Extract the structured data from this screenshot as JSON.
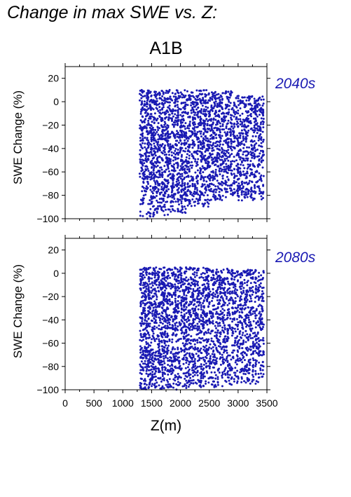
{
  "page_title": "Change in max SWE vs. Z:",
  "chart_title": "A1B",
  "colors": {
    "points": "#1a1ab3",
    "axes": "#000000"
  },
  "chart_data": [
    {
      "type": "scatter",
      "period_label": "2040s",
      "ylabel": "SWE Change (%)",
      "xlabel": "",
      "xlim": [
        0,
        3500
      ],
      "ylim": [
        -100,
        30
      ],
      "xticks": [
        "0",
        "500",
        "1000",
        "1500",
        "2000",
        "2500",
        "3000",
        "3500"
      ],
      "yticks": [
        "20",
        "0",
        "-20",
        "-40",
        "-60",
        "-80",
        "-100"
      ],
      "point_distribution": [
        {
          "x_range": [
            1300,
            1500
          ],
          "y_range": [
            -100,
            10
          ]
        },
        {
          "x_range": [
            1500,
            1800
          ],
          "y_range": [
            -98,
            10
          ]
        },
        {
          "x_range": [
            1800,
            2100
          ],
          "y_range": [
            -95,
            10
          ]
        },
        {
          "x_range": [
            2100,
            2500
          ],
          "y_range": [
            -90,
            10
          ]
        },
        {
          "x_range": [
            2500,
            2900
          ],
          "y_range": [
            -85,
            9
          ]
        },
        {
          "x_range": [
            2900,
            3450
          ],
          "y_range": [
            -85,
            5
          ]
        }
      ]
    },
    {
      "type": "scatter",
      "period_label": "2080s",
      "ylabel": "SWE Change (%)",
      "xlabel": "Z(m)",
      "xlim": [
        0,
        3500
      ],
      "ylim": [
        -100,
        30
      ],
      "xticks": [
        "0",
        "500",
        "1000",
        "1500",
        "2000",
        "2500",
        "3000",
        "3500"
      ],
      "yticks": [
        "20",
        "0",
        "-20",
        "-40",
        "-60",
        "-80",
        "-100"
      ],
      "point_distribution": [
        {
          "x_range": [
            1300,
            1500
          ],
          "y_range": [
            -100,
            5
          ]
        },
        {
          "x_range": [
            1500,
            1800
          ],
          "y_range": [
            -100,
            5
          ]
        },
        {
          "x_range": [
            1800,
            2100
          ],
          "y_range": [
            -100,
            5
          ]
        },
        {
          "x_range": [
            2100,
            2500
          ],
          "y_range": [
            -98,
            5
          ]
        },
        {
          "x_range": [
            2500,
            2900
          ],
          "y_range": [
            -98,
            4
          ]
        },
        {
          "x_range": [
            2900,
            3450
          ],
          "y_range": [
            -95,
            3
          ]
        }
      ]
    }
  ]
}
